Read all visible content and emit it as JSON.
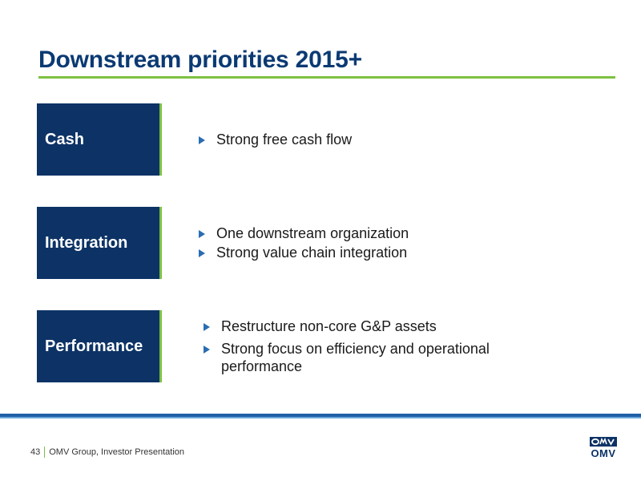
{
  "slide": {
    "title": "Downstream priorities 2015+",
    "rows": [
      {
        "label": "Cash",
        "bullets": [
          "Strong free cash flow"
        ]
      },
      {
        "label": "Integration",
        "bullets": [
          "One downstream organization",
          "Strong value chain integration"
        ]
      },
      {
        "label": "Performance",
        "bullets": [
          "Restructure non-core G&P assets",
          "Strong focus on efficiency and operational performance"
        ]
      }
    ]
  },
  "footer": {
    "page_number": "43",
    "caption": "OMV Group, Investor Presentation"
  },
  "logo": {
    "word": "OMV"
  },
  "colors": {
    "navy": "#0d3366",
    "green": "#7dc142",
    "blue": "#2a6db3"
  }
}
